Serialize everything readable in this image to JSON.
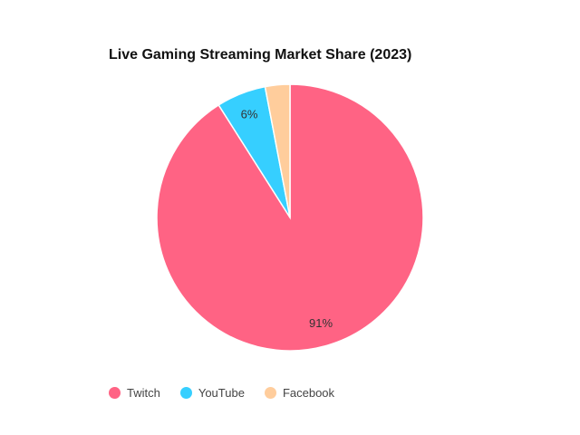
{
  "chart_data": {
    "type": "pie",
    "title": "Live Gaming Streaming Market Share (2023)",
    "categories": [
      "Twitch",
      "YouTube",
      "Facebook"
    ],
    "values": [
      91,
      6,
      3
    ],
    "colors": [
      "#FF6384",
      "#36CFFF",
      "#FFCD9C"
    ],
    "data_labels": [
      "91%",
      "6%",
      ""
    ],
    "legend_position": "bottom-left",
    "start_angle_deg": 0,
    "direction": "clockwise"
  },
  "legend": {
    "items": [
      {
        "label": "Twitch",
        "color": "#FF6384"
      },
      {
        "label": "YouTube",
        "color": "#36CFFF"
      },
      {
        "label": "Facebook",
        "color": "#FFCD9C"
      }
    ]
  }
}
